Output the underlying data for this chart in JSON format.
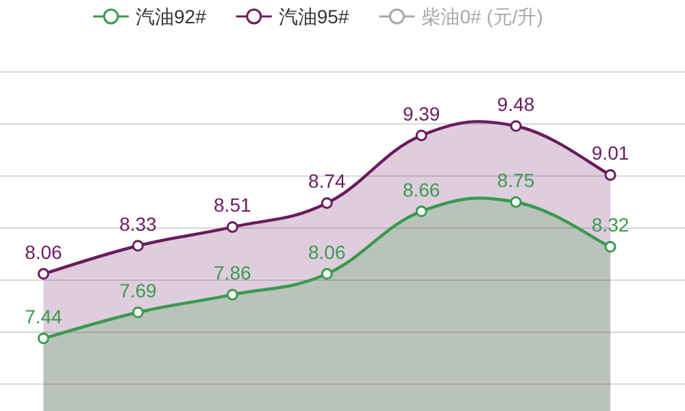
{
  "chart_data": {
    "type": "area",
    "categories": [
      null,
      null,
      null,
      null,
      null,
      null,
      null
    ],
    "series": [
      {
        "name": "汽油92#",
        "color": "#3a9a4e",
        "values": [
          7.44,
          7.69,
          7.86,
          8.06,
          8.66,
          8.75,
          8.32
        ]
      },
      {
        "name": "汽油95#",
        "color": "#6b1a5e",
        "values": [
          8.06,
          8.33,
          8.51,
          8.74,
          9.39,
          9.48,
          9.01
        ]
      },
      {
        "name": "柴油0# (元/升)",
        "color": "#a8a8a8",
        "values": [
          null,
          null,
          null,
          null,
          null,
          null,
          null
        ]
      }
    ],
    "yticks": [
      {
        "value": 7,
        "label": null
      },
      {
        "value": 7.5,
        "label": null
      },
      {
        "value": 8,
        "label": null
      },
      {
        "value": 8.5,
        "label": null
      },
      {
        "value": 9,
        "label": null
      },
      {
        "value": 9.5,
        "label": null
      },
      {
        "value": 10,
        "label": null
      }
    ],
    "grid": "y",
    "legend": "top",
    "marker": "circle",
    "data_labels": true
  }
}
